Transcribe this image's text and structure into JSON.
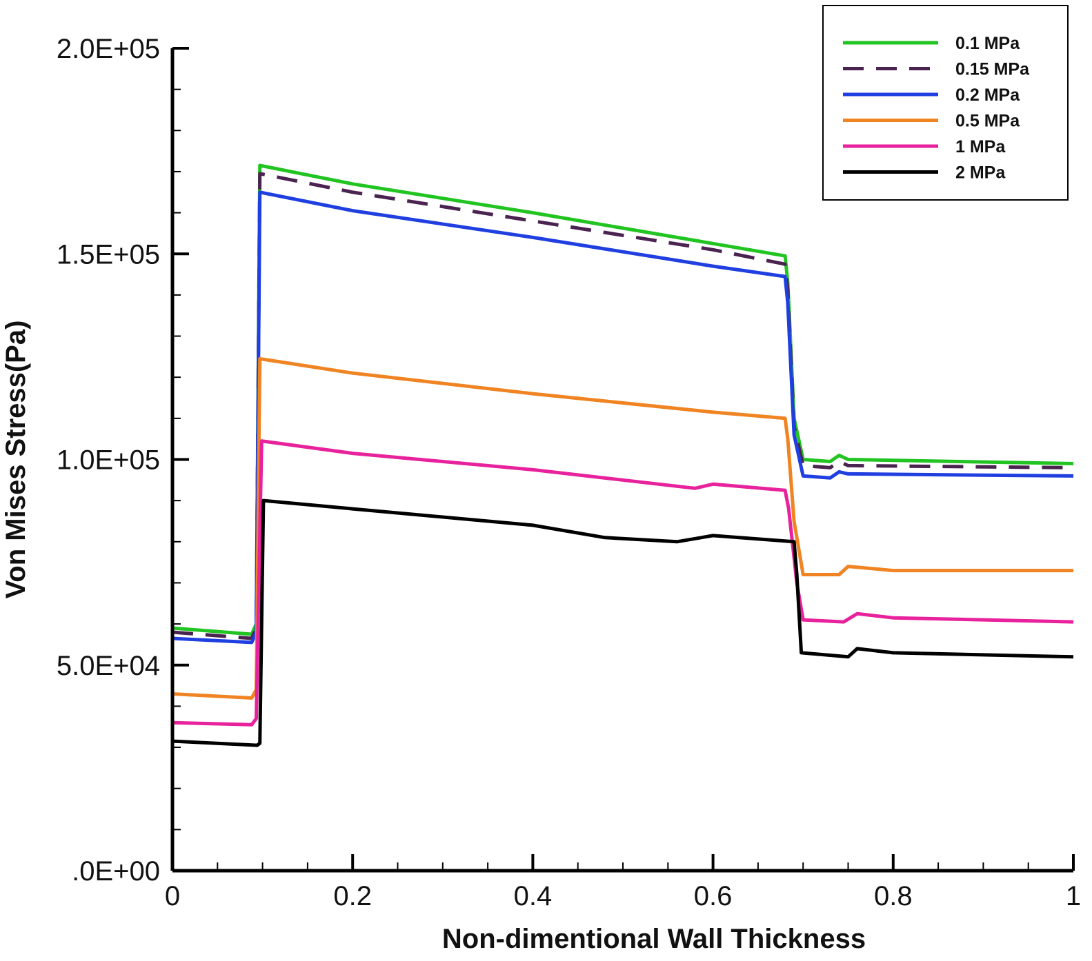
{
  "chart_data": {
    "type": "line",
    "title": "",
    "xlabel": "Non-dimentional Wall Thickness",
    "ylabel": "Von Mises Stress(Pa)",
    "xlim": [
      0,
      1
    ],
    "ylim": [
      0,
      200000
    ],
    "xticks": [
      0,
      0.2,
      0.4,
      0.6,
      0.8,
      1
    ],
    "xtick_labels": [
      "0",
      "0.2",
      "0.4",
      "0.6",
      "0.8",
      "1"
    ],
    "yticks": [
      0,
      50000,
      100000,
      150000,
      200000
    ],
    "ytick_labels": [
      ".0E+00",
      "5.0E+04",
      "1.0E+05",
      "1.5E+05",
      "2.0E+05"
    ],
    "grid": false,
    "legend_position": "top-right",
    "series": [
      {
        "name": "0.1 MPa",
        "color": "#22c422",
        "dash": "solid",
        "x": [
          0,
          0.088,
          0.093,
          0.097,
          0.2,
          0.4,
          0.6,
          0.68,
          0.683,
          0.69,
          0.7,
          0.73,
          0.74,
          0.75,
          1.0
        ],
        "y": [
          59000,
          57500,
          60000,
          171500,
          167000,
          160000,
          152500,
          149500,
          143000,
          110000,
          100000,
          99500,
          101000,
          100000,
          99000
        ]
      },
      {
        "name": "0.15 MPa",
        "color": "#4a2350",
        "dash": "dashed",
        "x": [
          0,
          0.088,
          0.093,
          0.097,
          0.2,
          0.4,
          0.6,
          0.68,
          0.683,
          0.69,
          0.7,
          0.73,
          0.74,
          0.75,
          1.0
        ],
        "y": [
          58000,
          56500,
          59000,
          169500,
          165000,
          158000,
          151000,
          147500,
          141000,
          108000,
          98500,
          98000,
          99500,
          98500,
          98000
        ]
      },
      {
        "name": "0.2 MPa",
        "color": "#1f3fe0",
        "dash": "solid",
        "x": [
          0,
          0.088,
          0.093,
          0.097,
          0.2,
          0.4,
          0.6,
          0.68,
          0.683,
          0.69,
          0.7,
          0.73,
          0.74,
          0.75,
          1.0
        ],
        "y": [
          56500,
          55500,
          58000,
          165000,
          160500,
          154000,
          147000,
          144500,
          138000,
          106000,
          96000,
          95500,
          97000,
          96500,
          96000
        ]
      },
      {
        "name": "0.5 MPa",
        "color": "#f08422",
        "dash": "solid",
        "x": [
          0,
          0.088,
          0.093,
          0.097,
          0.2,
          0.4,
          0.6,
          0.68,
          0.683,
          0.69,
          0.7,
          0.74,
          0.75,
          0.8,
          1.0
        ],
        "y": [
          43000,
          42000,
          44000,
          124500,
          121000,
          116000,
          111500,
          110000,
          105000,
          85000,
          72000,
          72000,
          74000,
          73000,
          73000
        ]
      },
      {
        "name": "1 MPa",
        "color": "#e8229c",
        "dash": "solid",
        "x": [
          0,
          0.088,
          0.093,
          0.099,
          0.2,
          0.4,
          0.58,
          0.6,
          0.68,
          0.684,
          0.693,
          0.7,
          0.745,
          0.76,
          0.8,
          1.0
        ],
        "y": [
          36000,
          35500,
          37000,
          104500,
          101500,
          97500,
          93000,
          94000,
          92500,
          88000,
          70000,
          61000,
          60500,
          62500,
          61500,
          60500
        ]
      },
      {
        "name": "2 MPa",
        "color": "#000000",
        "dash": "solid",
        "x": [
          0,
          0.094,
          0.097,
          0.101,
          0.2,
          0.4,
          0.48,
          0.56,
          0.6,
          0.69,
          0.693,
          0.698,
          0.75,
          0.76,
          0.8,
          1.0
        ],
        "y": [
          31500,
          30500,
          31000,
          90000,
          88000,
          84000,
          81000,
          80000,
          81500,
          80000,
          72000,
          53000,
          52000,
          54000,
          53000,
          52000
        ]
      }
    ]
  }
}
